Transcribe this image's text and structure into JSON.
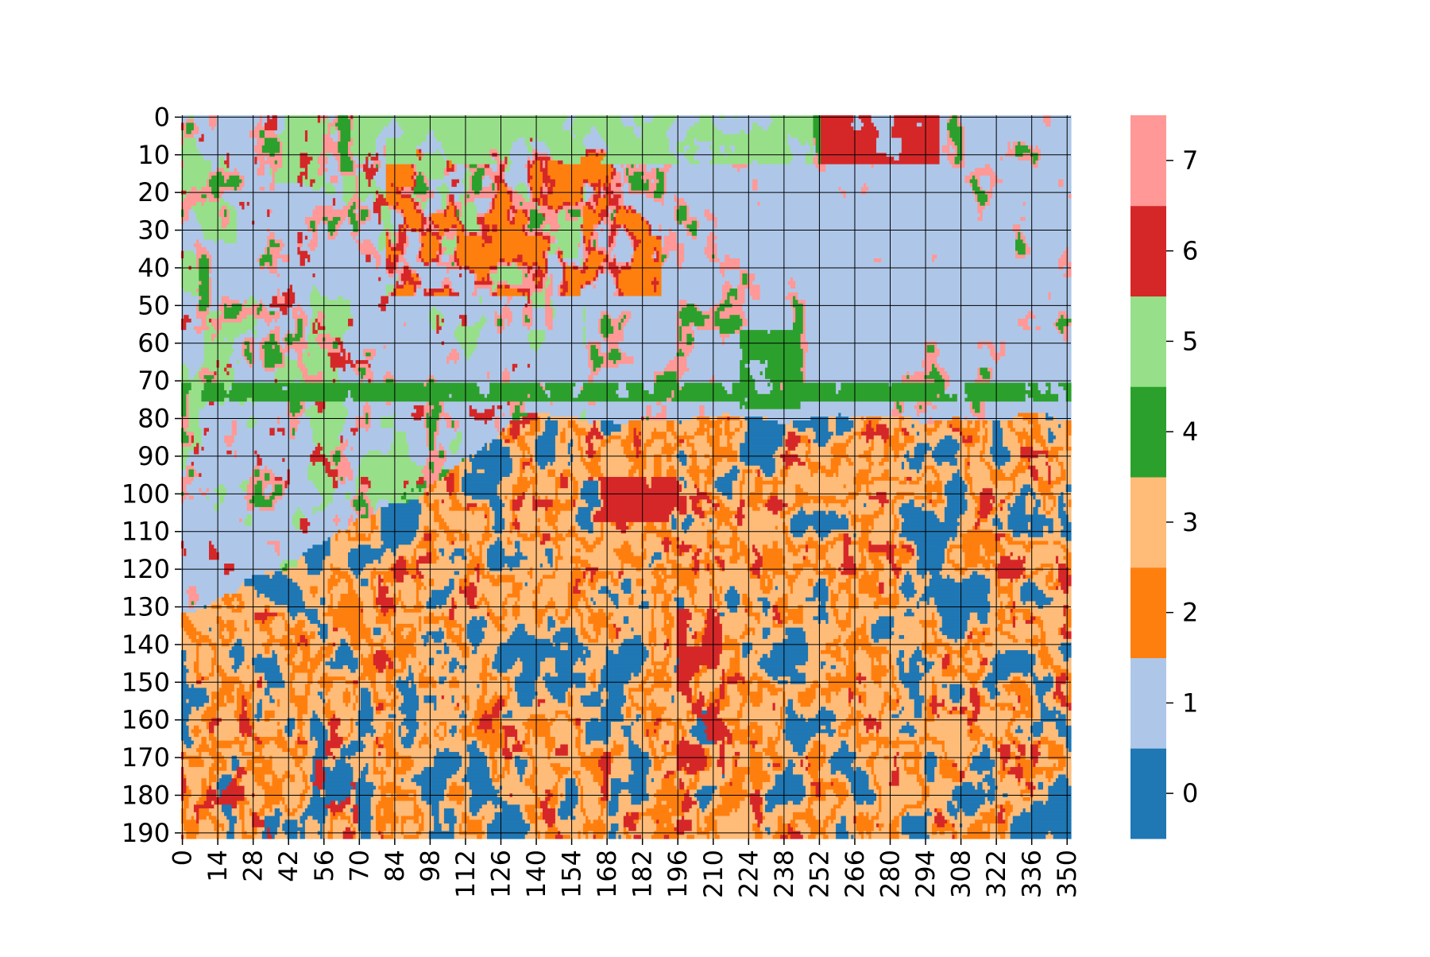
{
  "chart_data": {
    "type": "heatmap",
    "title": "",
    "xlabel": "",
    "ylabel": "",
    "rows": 192,
    "cols": 352,
    "grid": true,
    "x_ticks": [
      "0",
      "14",
      "28",
      "42",
      "56",
      "70",
      "84",
      "98",
      "112",
      "126",
      "140",
      "154",
      "168",
      "182",
      "196",
      "210",
      "224",
      "238",
      "252",
      "266",
      "280",
      "294",
      "308",
      "322",
      "336",
      "350"
    ],
    "y_ticks": [
      "0",
      "10",
      "20",
      "30",
      "40",
      "50",
      "60",
      "70",
      "80",
      "90",
      "100",
      "110",
      "120",
      "130",
      "140",
      "150",
      "160",
      "170",
      "180",
      "190"
    ],
    "colorbar": {
      "placement": "right",
      "ticks": [
        "0",
        "1",
        "2",
        "3",
        "4",
        "5",
        "6",
        "7"
      ],
      "colors": [
        "#1f77b4",
        "#aec7e8",
        "#ff7f0e",
        "#ffbb78",
        "#2ca02c",
        "#98df8a",
        "#d62728",
        "#ff9896"
      ]
    },
    "regions": [
      {
        "rows": [
          0,
          80
        ],
        "cols": [
          0,
          352
        ],
        "dominant_classes": [
          1,
          5,
          4,
          7,
          6,
          2
        ]
      },
      {
        "rows": [
          0,
          14
        ],
        "cols": [
          252,
          300
        ],
        "dominant_classes": [
          6,
          5
        ]
      },
      {
        "rows": [
          8,
          48
        ],
        "cols": [
          80,
          190
        ],
        "dominant_classes": [
          2,
          6,
          7
        ]
      },
      {
        "rows": [
          56,
          78
        ],
        "cols": [
          220,
          245
        ],
        "dominant_classes": [
          4
        ]
      },
      {
        "rows": [
          80,
          135
        ],
        "cols": [
          0,
          140
        ],
        "dominant_classes": [
          1,
          4,
          7,
          5
        ]
      },
      {
        "rows": [
          80,
          192
        ],
        "cols": [
          140,
          352
        ],
        "dominant_classes": [
          0,
          3,
          2,
          6
        ]
      },
      {
        "rows": [
          135,
          192
        ],
        "cols": [
          0,
          140
        ],
        "dominant_classes": [
          3,
          2,
          0,
          6
        ]
      }
    ]
  }
}
